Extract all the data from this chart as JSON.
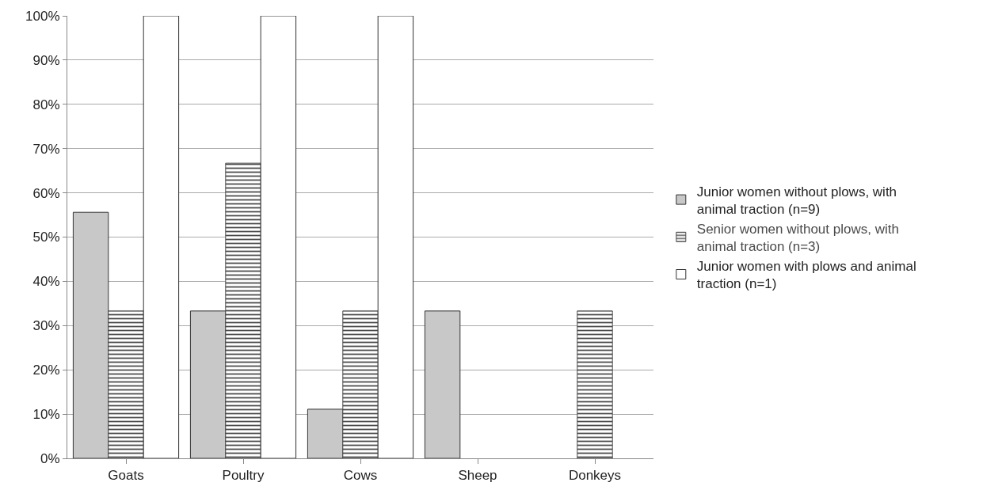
{
  "chart_data": {
    "type": "bar",
    "categories": [
      "Goats",
      "Poultry",
      "Cows",
      "Sheep",
      "Donkeys"
    ],
    "series": [
      {
        "name": "Junior women without plows, with animal traction (n=9)",
        "color": "#c8c8c8",
        "values": [
          55.6,
          33.3,
          11.1,
          33.3,
          0
        ]
      },
      {
        "name": "Senior women without plows, with animal traction (n=3)",
        "color": "#4a4a4a",
        "values": [
          33.3,
          66.7,
          33.3,
          0,
          33.3
        ]
      },
      {
        "name": "Junior women with plows and animal traction (n=1)",
        "color": "#ffffff",
        "values": [
          100,
          100,
          100,
          0,
          0
        ]
      }
    ],
    "ylim": [
      0,
      100
    ],
    "yticks": [
      {
        "value": 0,
        "label": "0%"
      },
      {
        "value": 10,
        "label": "10%"
      },
      {
        "value": 20,
        "label": "20%"
      },
      {
        "value": 30,
        "label": "30%"
      },
      {
        "value": 40,
        "label": "40%"
      },
      {
        "value": 50,
        "label": "50%"
      },
      {
        "value": 60,
        "label": "60%"
      },
      {
        "value": 70,
        "label": "70%"
      },
      {
        "value": 80,
        "label": "80%"
      },
      {
        "value": 90,
        "label": "90%"
      },
      {
        "value": 100,
        "label": "100%"
      }
    ],
    "grid": "y",
    "legend": "right"
  }
}
